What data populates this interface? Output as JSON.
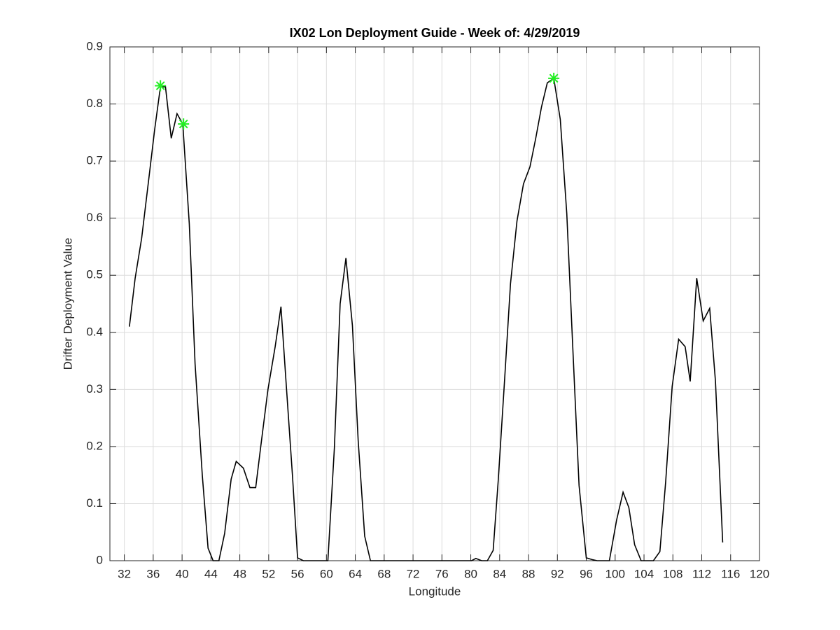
{
  "chart_data": {
    "type": "line",
    "title": "IX02 Lon Deployment Guide - Week of: 4/29/2019",
    "xlabel": "Longitude",
    "ylabel": "Drifter Deployment Value",
    "xlim": [
      30,
      120
    ],
    "ylim": [
      0,
      0.9
    ],
    "xticks": [
      32,
      36,
      40,
      44,
      48,
      52,
      56,
      60,
      64,
      68,
      72,
      76,
      80,
      84,
      88,
      92,
      96,
      100,
      104,
      108,
      112,
      116,
      120
    ],
    "yticks": [
      {
        "value": 0,
        "label": "0"
      },
      {
        "value": 0.1,
        "label": "0.1"
      },
      {
        "value": 0.2,
        "label": "0.2"
      },
      {
        "value": 0.3,
        "label": "0.3"
      },
      {
        "value": 0.4,
        "label": "0.4"
      },
      {
        "value": 0.5,
        "label": "0.5"
      },
      {
        "value": 0.6,
        "label": "0.6"
      },
      {
        "value": 0.7,
        "label": "0.7"
      },
      {
        "value": 0.8,
        "label": "0.8"
      },
      {
        "value": 0.9,
        "label": "0.9"
      }
    ],
    "grid": true,
    "line": {
      "color": "#000000",
      "x": [
        32.7,
        33.5,
        34.4,
        35.4,
        36.2,
        37.0,
        37.7,
        38.5,
        39.3,
        40.1,
        41.0,
        41.8,
        42.8,
        43.6,
        44.3,
        45.1,
        45.9,
        46.8,
        47.5,
        48.5,
        49.4,
        50.2,
        50.9,
        51.9,
        52.9,
        53.7,
        54.4,
        55.3,
        56.0,
        56.8,
        60.2,
        61.1,
        61.9,
        62.7,
        63.6,
        64.4,
        65.3,
        66.1,
        80.1,
        80.7,
        81.5,
        82.3,
        83.1,
        83.8,
        84.7,
        85.5,
        86.4,
        87.3,
        88.2,
        89.0,
        89.8,
        90.6,
        91.5,
        92.4,
        93.3,
        94.1,
        95.0,
        96.0,
        96.8,
        97.5,
        99.2,
        100.2,
        101.1,
        101.9,
        102.7,
        103.6,
        105.3,
        106.2,
        107.0,
        107.9,
        108.8,
        109.7,
        110.4,
        111.3,
        112.2,
        113.1,
        113.9,
        114.9
      ],
      "values": [
        0.41,
        0.495,
        0.565,
        0.67,
        0.755,
        0.83,
        0.83,
        0.74,
        0.783,
        0.765,
        0.59,
        0.345,
        0.15,
        0.022,
        0,
        0,
        0.048,
        0.143,
        0.174,
        0.162,
        0.128,
        0.128,
        0.2,
        0.3,
        0.375,
        0.445,
        0.314,
        0.148,
        0.005,
        0,
        0,
        0.197,
        0.45,
        0.53,
        0.412,
        0.21,
        0.043,
        0,
        0,
        0.004,
        0,
        0,
        0.018,
        0.14,
        0.32,
        0.485,
        0.595,
        0.66,
        0.69,
        0.74,
        0.795,
        0.837,
        0.845,
        0.773,
        0.608,
        0.382,
        0.132,
        0.005,
        0.002,
        0,
        0,
        0.071,
        0.12,
        0.093,
        0.028,
        0,
        0,
        0.016,
        0.138,
        0.305,
        0.388,
        0.375,
        0.314,
        0.495,
        0.42,
        0.442,
        0.314,
        0.032
      ]
    },
    "peaks": {
      "color": "#22ee22",
      "x": [
        37.0,
        40.2,
        91.5
      ],
      "values": [
        0.832,
        0.765,
        0.845
      ]
    }
  }
}
